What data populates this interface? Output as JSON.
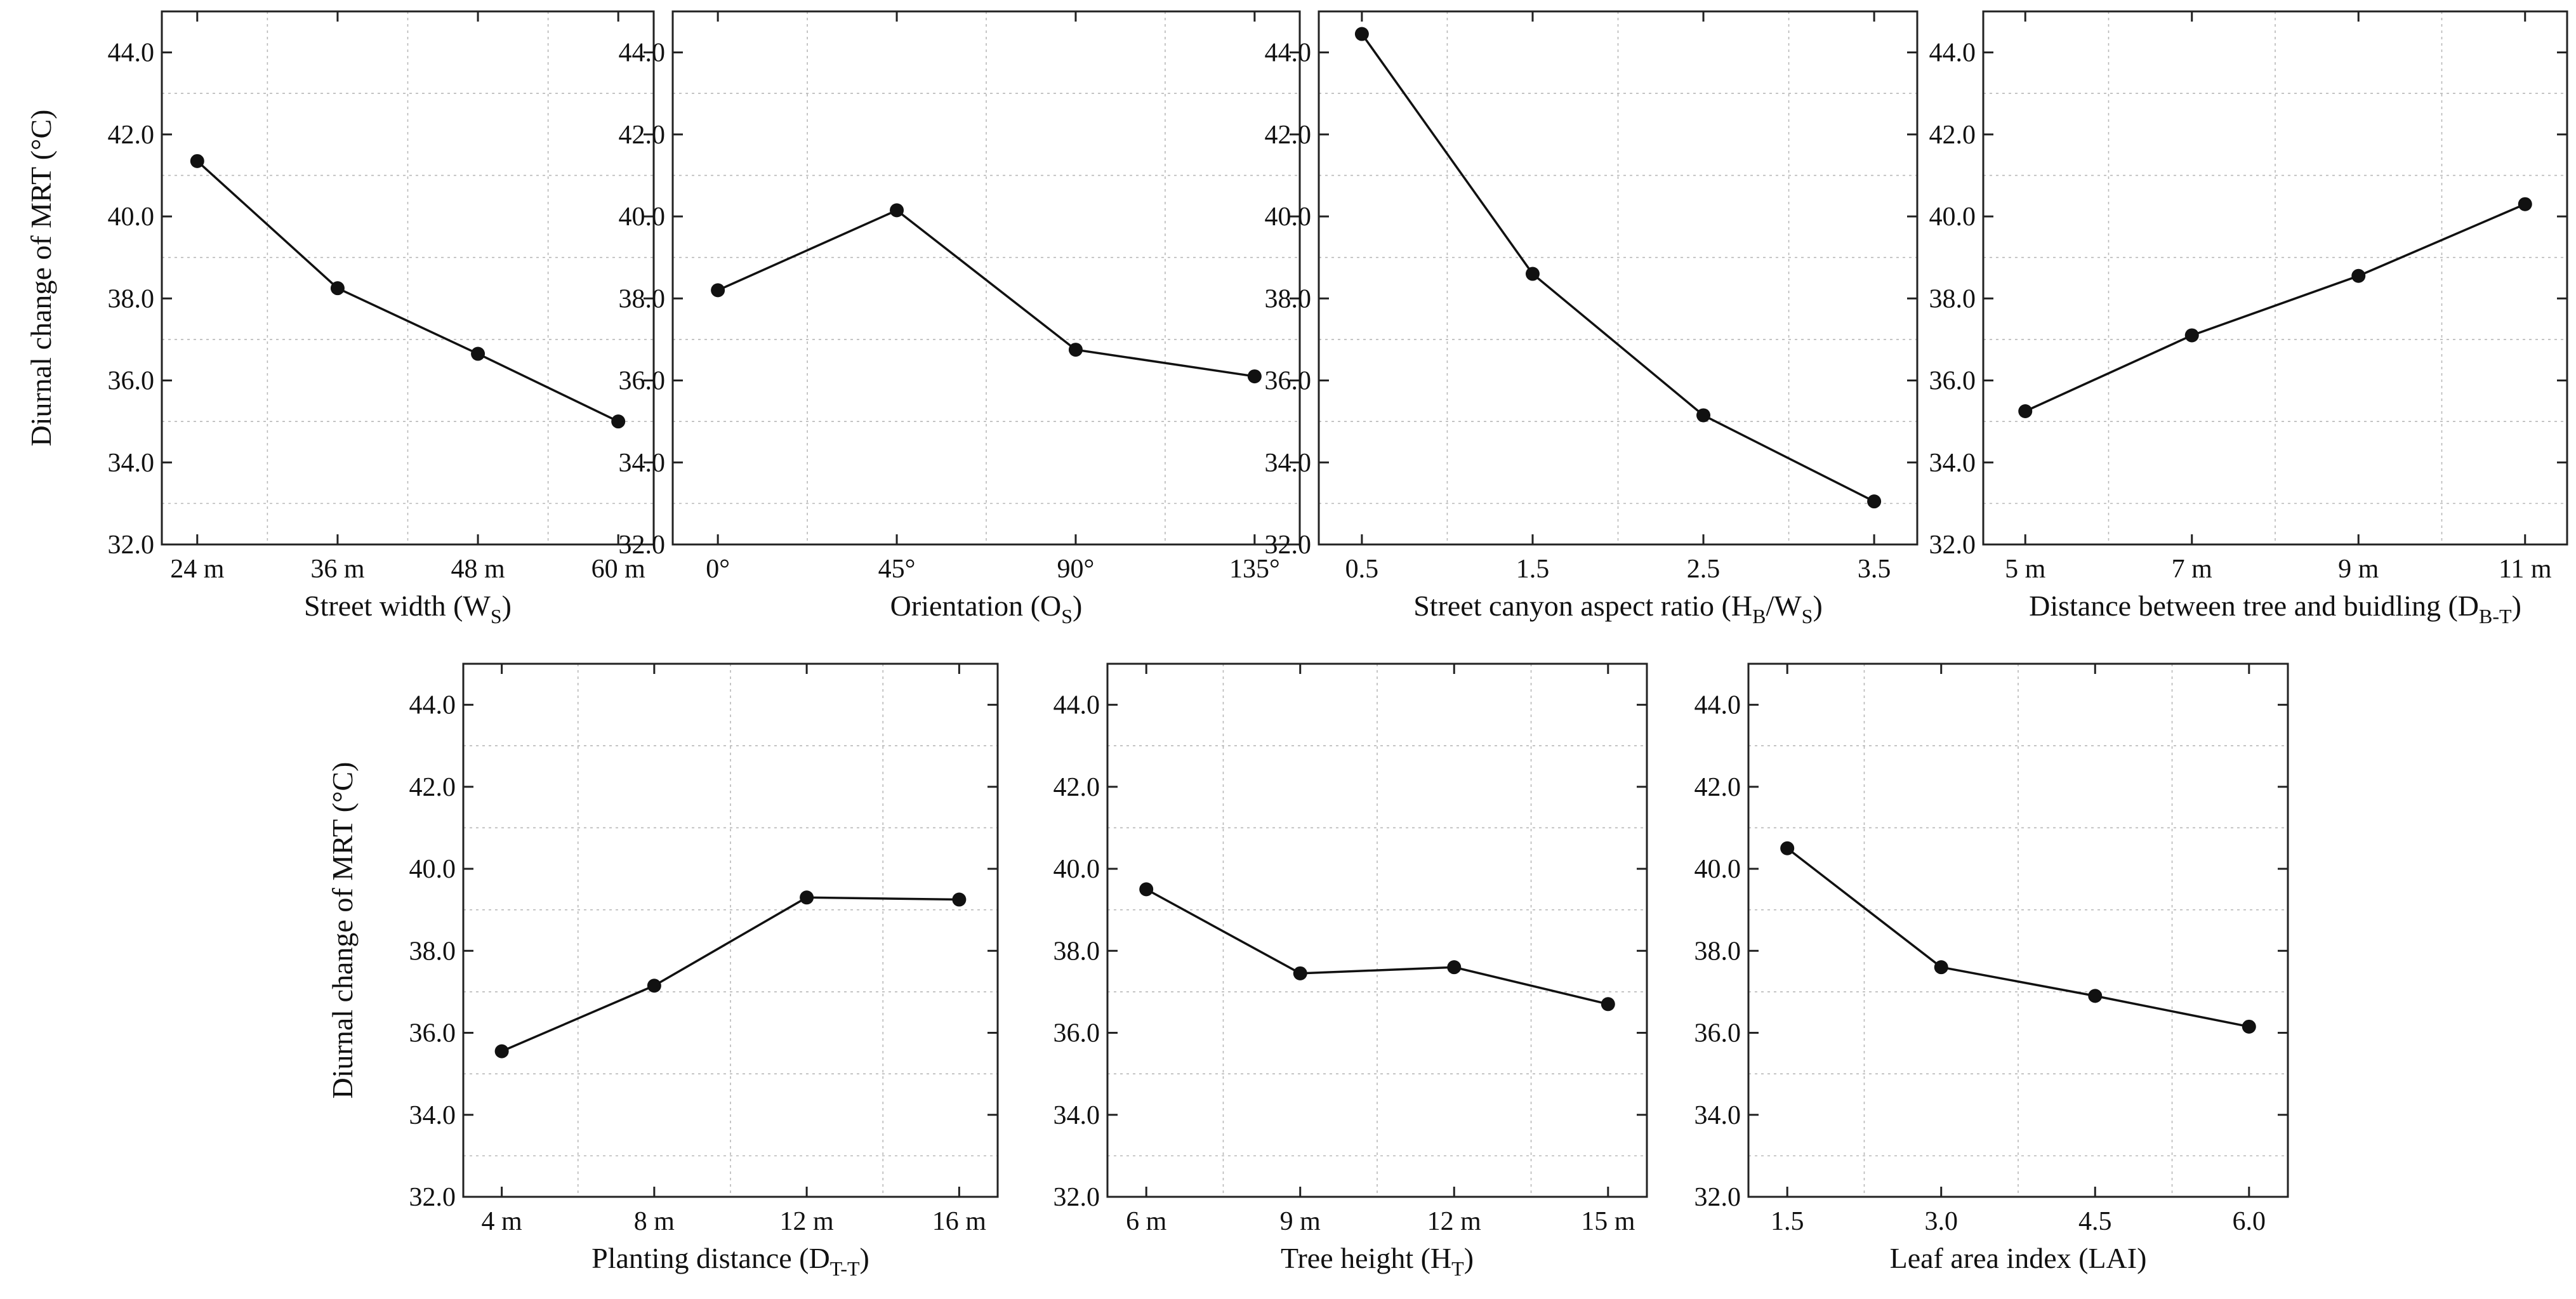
{
  "chart_data": [
    {
      "type": "line",
      "ylabel": "Diurnal change of MRT (°C)",
      "xlabel": "Street width (W",
      "xlabel_sub": "S",
      "xlabel_end": ")",
      "categories": [
        "24 m",
        "36 m",
        "48 m",
        "60 m"
      ],
      "values": [
        41.35,
        38.25,
        36.65,
        35.0
      ],
      "ylim": [
        32.0,
        45.0
      ],
      "yticks": [
        "32.0",
        "34.0",
        "36.0",
        "38.0",
        "40.0",
        "42.0",
        "44.0"
      ],
      "grid": true
    },
    {
      "type": "line",
      "ylabel": "",
      "xlabel": "Orientation (O",
      "xlabel_sub": "S",
      "xlabel_end": ")",
      "categories": [
        "0°",
        "45°",
        "90°",
        "135°"
      ],
      "values": [
        38.2,
        40.15,
        36.75,
        36.1
      ],
      "ylim": [
        32.0,
        45.0
      ],
      "yticks": [
        "32.0",
        "34.0",
        "36.0",
        "38.0",
        "40.0",
        "42.0",
        "44.0"
      ],
      "grid": true
    },
    {
      "type": "line",
      "ylabel": "",
      "xlabel": "Street canyon aspect ratio (H",
      "xlabel_sub": "B",
      "xlabel_mid": "/W",
      "xlabel_sub2": "S",
      "xlabel_end": ")",
      "categories": [
        "0.5",
        "1.5",
        "2.5",
        "3.5"
      ],
      "values": [
        44.45,
        38.6,
        35.15,
        33.05
      ],
      "ylim": [
        32.0,
        45.0
      ],
      "yticks": [
        "32.0",
        "34.0",
        "36.0",
        "38.0",
        "40.0",
        "42.0",
        "44.0"
      ],
      "grid": true
    },
    {
      "type": "line",
      "ylabel": "",
      "xlabel": "Distance between tree and buidling (D",
      "xlabel_sub": "B-T",
      "xlabel_end": ")",
      "categories": [
        "5 m",
        "7 m",
        "9 m",
        "11 m"
      ],
      "values": [
        35.25,
        37.1,
        38.55,
        40.3
      ],
      "ylim": [
        32.0,
        45.0
      ],
      "yticks": [
        "32.0",
        "34.0",
        "36.0",
        "38.0",
        "40.0",
        "42.0",
        "44.0"
      ],
      "grid": true
    },
    {
      "type": "line",
      "ylabel": "Diurnal change of MRT (°C)",
      "xlabel": "Planting distance (D",
      "xlabel_sub": "T-T",
      "xlabel_end": ")",
      "categories": [
        "4 m",
        "8 m",
        "12 m",
        "16 m"
      ],
      "values": [
        35.55,
        37.15,
        39.3,
        39.25
      ],
      "ylim": [
        32.0,
        45.0
      ],
      "yticks": [
        "32.0",
        "34.0",
        "36.0",
        "38.0",
        "40.0",
        "42.0",
        "44.0"
      ],
      "grid": true
    },
    {
      "type": "line",
      "ylabel": "",
      "xlabel": "Tree height (H",
      "xlabel_sub": "T",
      "xlabel_end": ")",
      "categories": [
        "6 m",
        "9 m",
        "12 m",
        "15 m"
      ],
      "values": [
        39.5,
        37.45,
        37.6,
        36.7
      ],
      "ylim": [
        32.0,
        45.0
      ],
      "yticks": [
        "32.0",
        "34.0",
        "36.0",
        "38.0",
        "40.0",
        "42.0",
        "44.0"
      ],
      "grid": true
    },
    {
      "type": "line",
      "ylabel": "",
      "xlabel": "Leaf area index (LAI)",
      "xlabel_sub": "",
      "xlabel_end": "",
      "categories": [
        "1.5",
        "3.0",
        "4.5",
        "6.0"
      ],
      "values": [
        40.5,
        37.6,
        36.9,
        36.15
      ],
      "ylim": [
        32.0,
        45.0
      ],
      "yticks": [
        "32.0",
        "34.0",
        "36.0",
        "38.0",
        "40.0",
        "42.0",
        "44.0"
      ],
      "grid": true
    }
  ]
}
